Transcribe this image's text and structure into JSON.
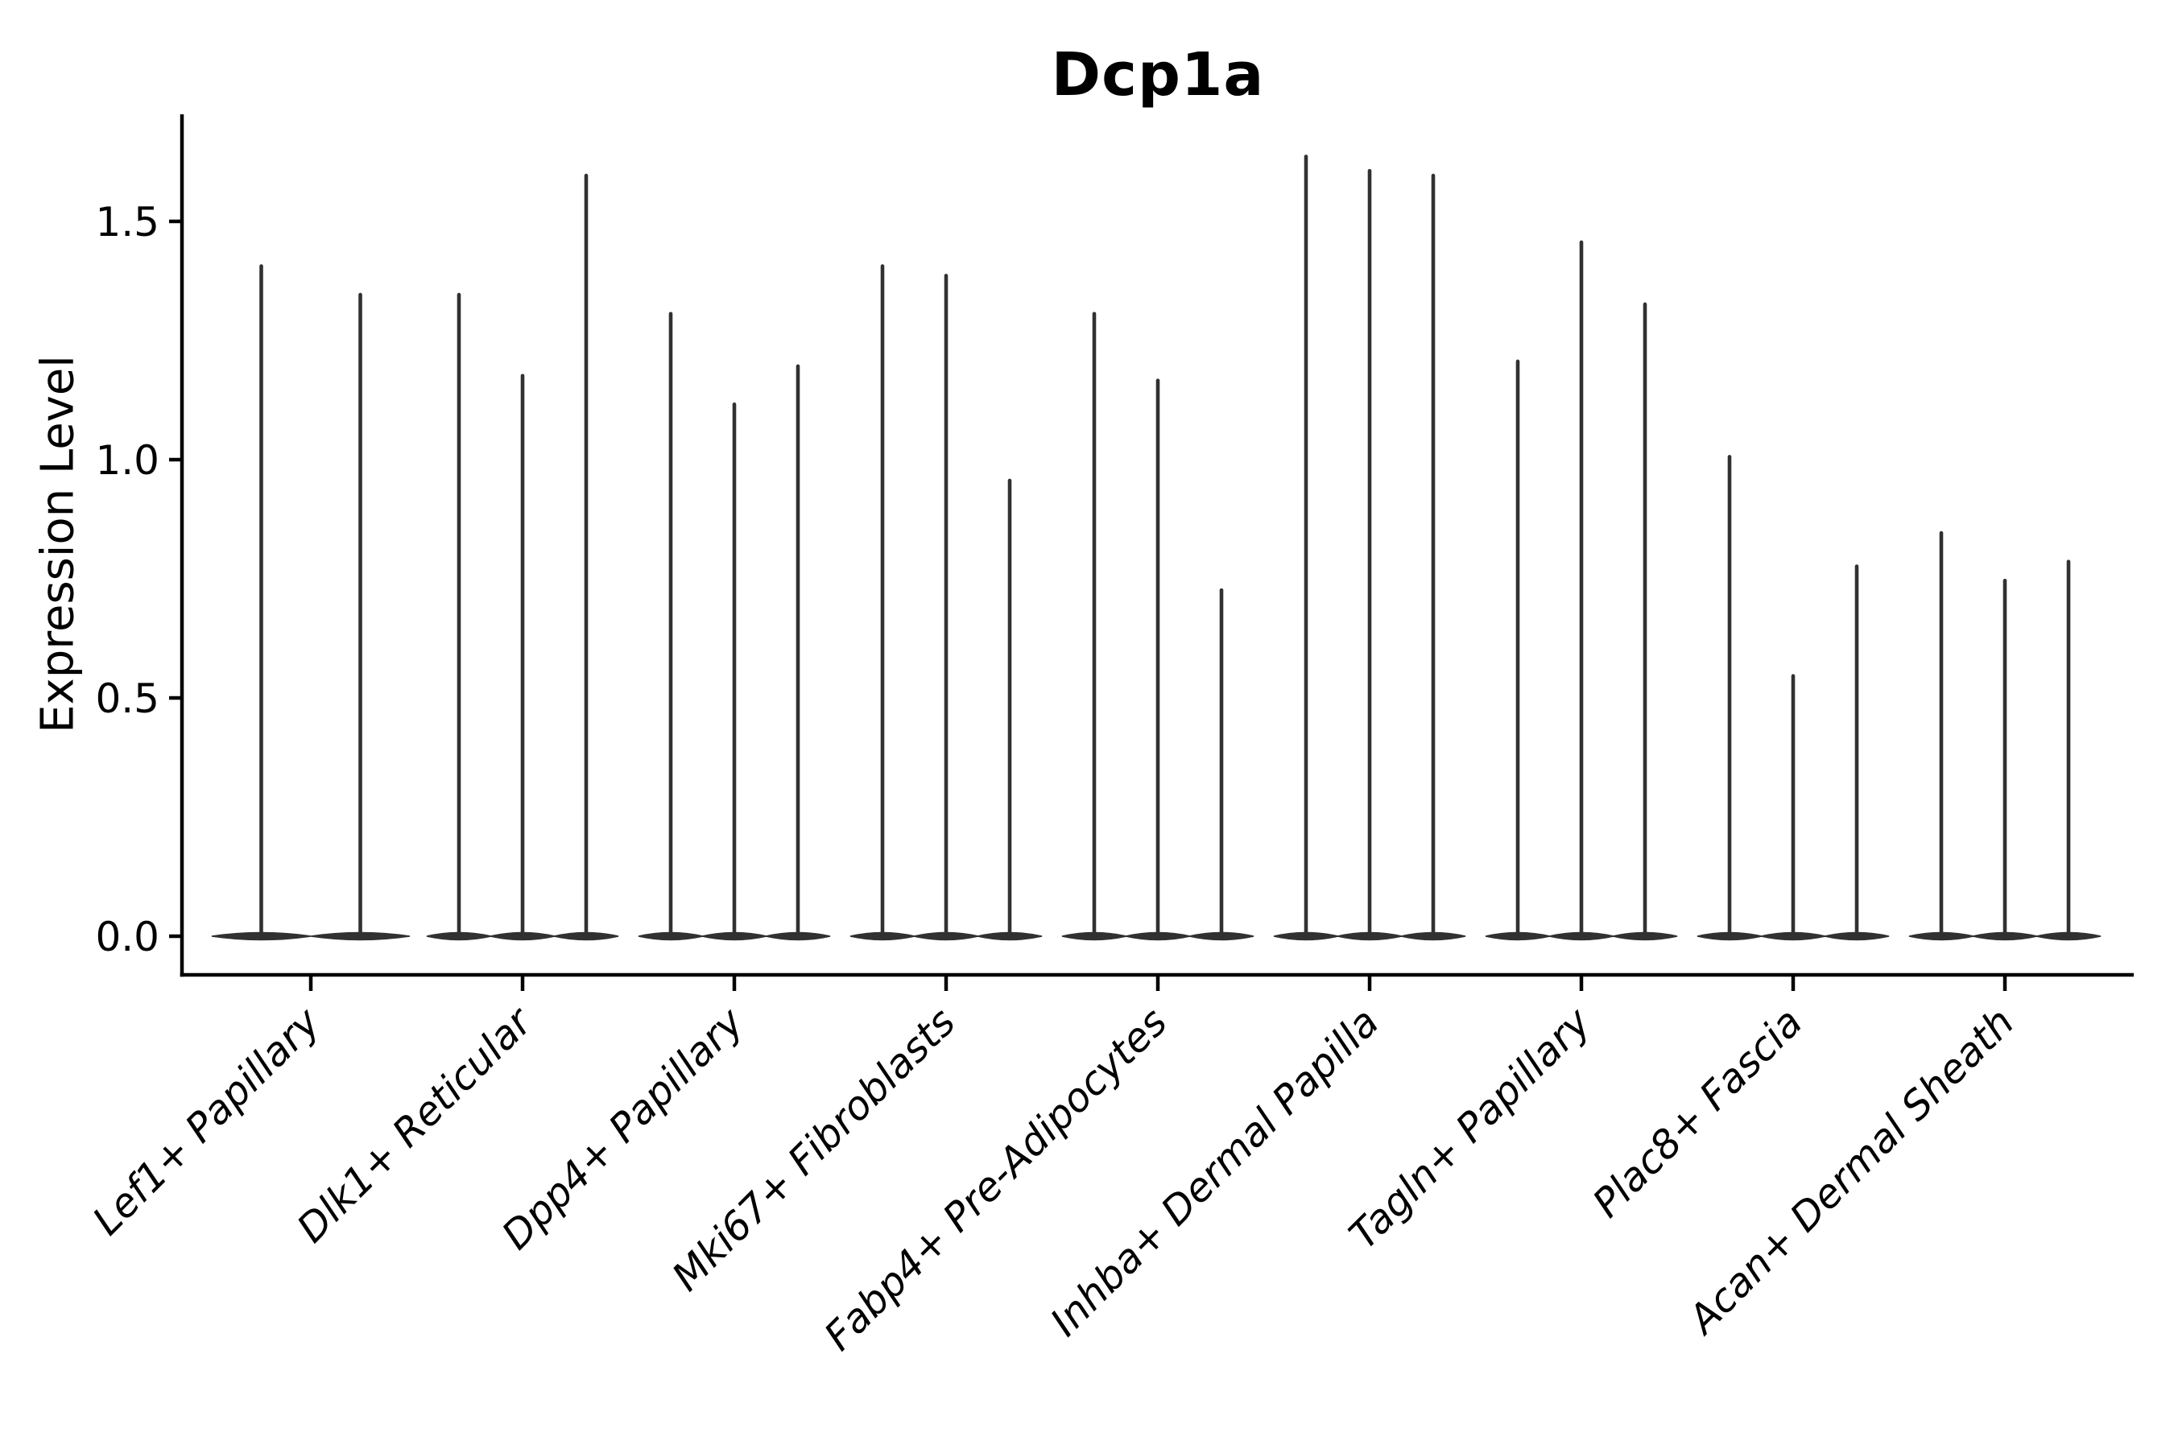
{
  "chart_data": {
    "type": "violin",
    "title": "Dcp1a",
    "ylabel": "Expression Level",
    "xlabel": "",
    "yticks": [
      0.0,
      0.5,
      1.0,
      1.5
    ],
    "ylim": [
      -0.08,
      1.72
    ],
    "grid": false,
    "legend": null,
    "description": "Stacked violin plot of gene expression; each cell-type group shows 2-3 very narrow violins (flat base at 0 with thin spikes to max expression).",
    "groups": [
      {
        "label": "Lef1+ Papillary",
        "violin_max_values": [
          1.41,
          1.35
        ]
      },
      {
        "label": "Dlk1+ Reticular",
        "violin_max_values": [
          1.35,
          1.18,
          1.6
        ]
      },
      {
        "label": "Dpp4+ Papillary",
        "violin_max_values": [
          1.31,
          1.12,
          1.2
        ]
      },
      {
        "label": "Mki67+ Fibroblasts",
        "violin_max_values": [
          1.41,
          1.39,
          0.96
        ]
      },
      {
        "label": "Fabp4+ Pre-Adipocytes",
        "violin_max_values": [
          1.31,
          1.17,
          0.73
        ]
      },
      {
        "label": "Inhba+ Dermal Papilla",
        "violin_max_values": [
          1.64,
          1.61,
          1.6
        ]
      },
      {
        "label": "Tagln+ Papillary",
        "violin_max_values": [
          1.21,
          1.46,
          1.33
        ]
      },
      {
        "label": "Plac8+ Fascia",
        "violin_max_values": [
          1.01,
          0.55,
          0.78
        ]
      },
      {
        "label": "Acan+ Dermal Sheath",
        "violin_max_values": [
          0.85,
          0.75,
          0.79
        ]
      }
    ],
    "colors": {
      "violin": "#313131",
      "axis": "#000000",
      "text": "#000000",
      "background": "#ffffff"
    }
  }
}
